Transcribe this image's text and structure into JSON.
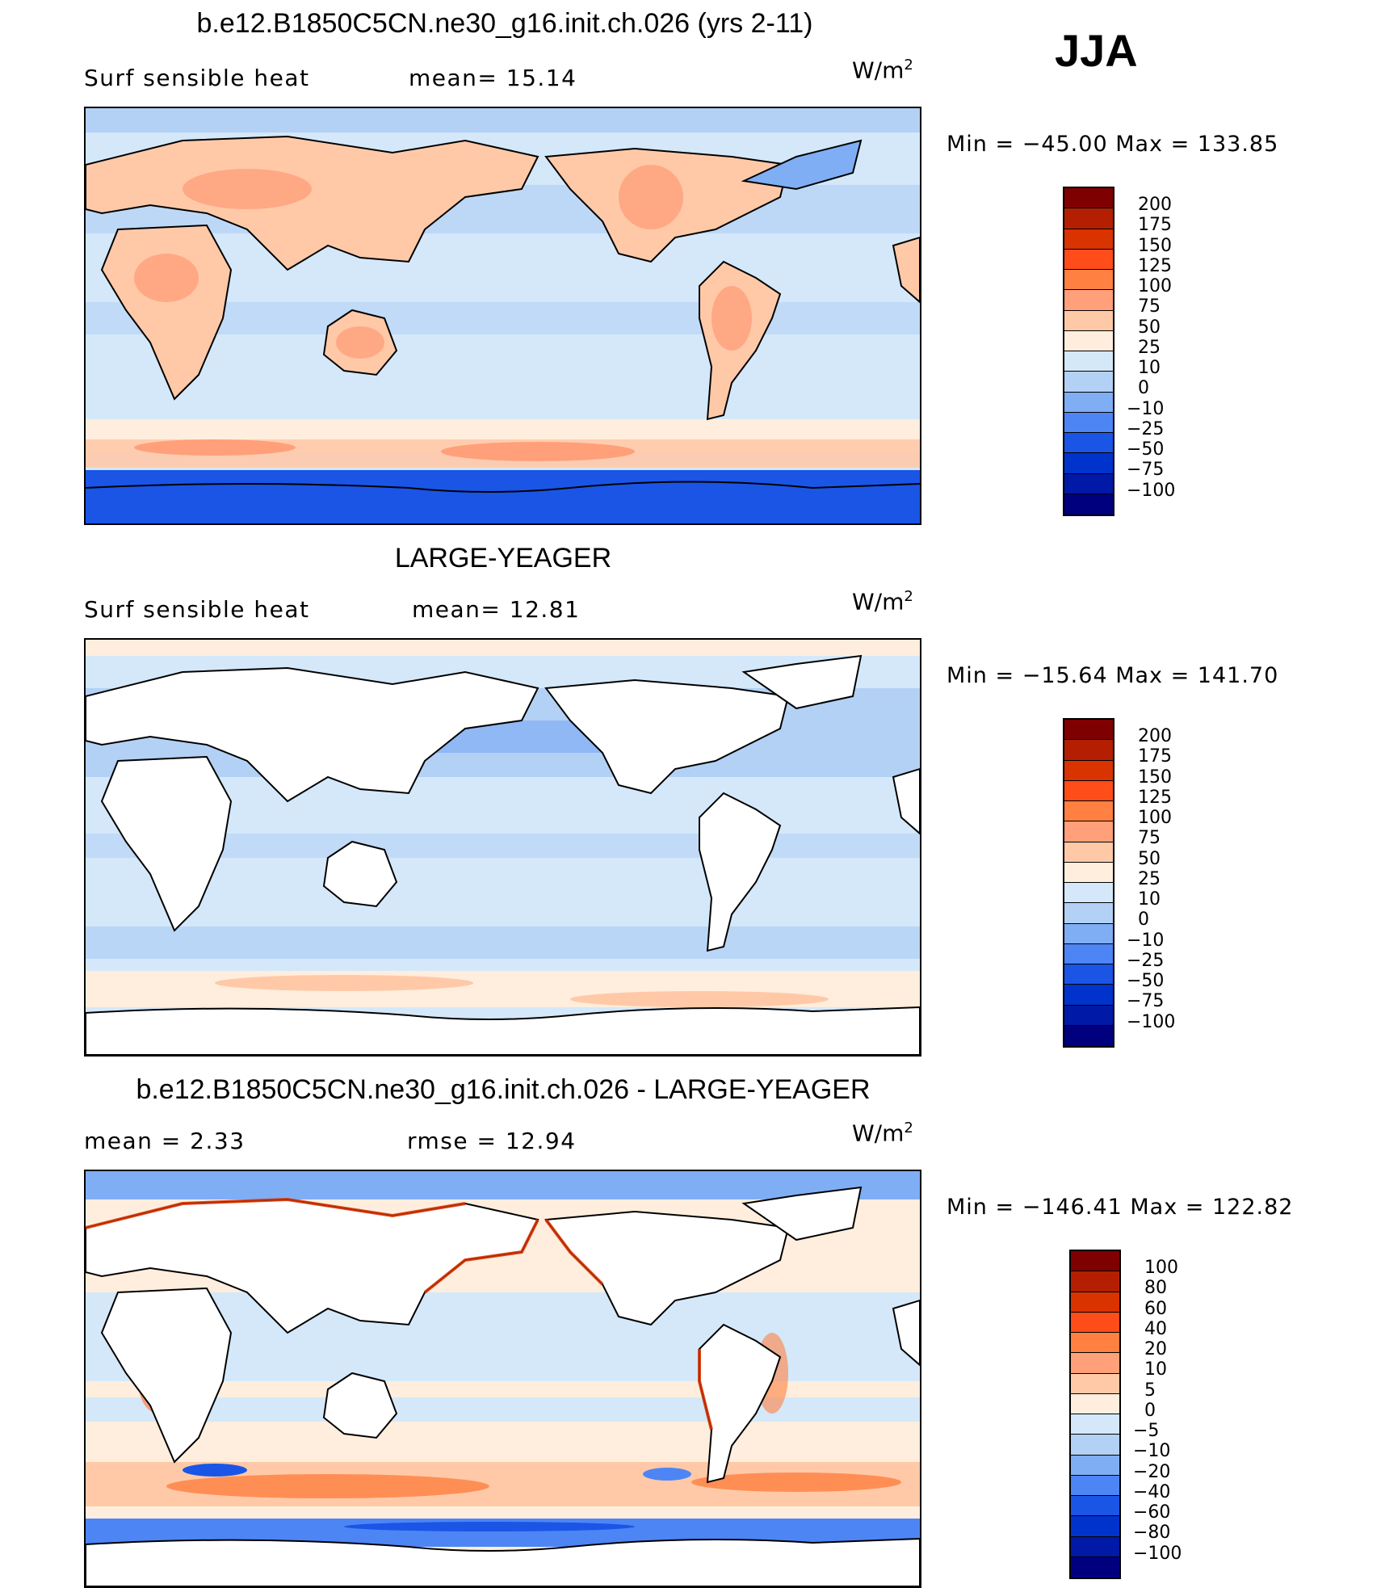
{
  "season": "JJA",
  "units_base": "W/m",
  "units_sup": "2",
  "panels": [
    {
      "title": "b.e12.B1850C5CN.ne30_g16.init.ch.026 (yrs 2-11)",
      "left_label": "Surf  sensible  heat",
      "right_label": "mean=   15.14",
      "minmax": "Min  =  −45.00  Max  =  133.85",
      "colorbar_labels": [
        "200",
        "175",
        "150",
        "125",
        "100",
        "75",
        "50",
        "25",
        "10",
        "0",
        "−10",
        "−25",
        "−50",
        "−75",
        "−100"
      ]
    },
    {
      "title": "LARGE-YEAGER",
      "left_label": "Surf  sensible  heat",
      "right_label": "mean=   12.81",
      "minmax": "Min  =  −15.64  Max  =  141.70",
      "colorbar_labels": [
        "200",
        "175",
        "150",
        "125",
        "100",
        "75",
        "50",
        "25",
        "10",
        "0",
        "−10",
        "−25",
        "−50",
        "−75",
        "−100"
      ]
    },
    {
      "title": "b.e12.B1850C5CN.ne30_g16.init.ch.026 - LARGE-YEAGER",
      "left_label": "mean  =     2.33",
      "right_label": "rmse  =    12.94",
      "minmax": "Min  =  −146.41  Max  =  122.82",
      "colorbar_labels": [
        "100",
        "80",
        "60",
        "40",
        "20",
        "10",
        "5",
        "0",
        "−5",
        "−10",
        "−20",
        "−40",
        "−60",
        "−80",
        "−100"
      ]
    }
  ],
  "colorbar_colors": [
    "#7f0000",
    "#b31f00",
    "#d93300",
    "#ff4d1a",
    "#ff8040",
    "#ffa07a",
    "#ffc9a8",
    "#ffeedd",
    "#d4e8fa",
    "#b3d1f5",
    "#80aef5",
    "#4d85f5",
    "#1a55e6",
    "#0033cc",
    "#0019a6",
    "#00007f"
  ]
}
